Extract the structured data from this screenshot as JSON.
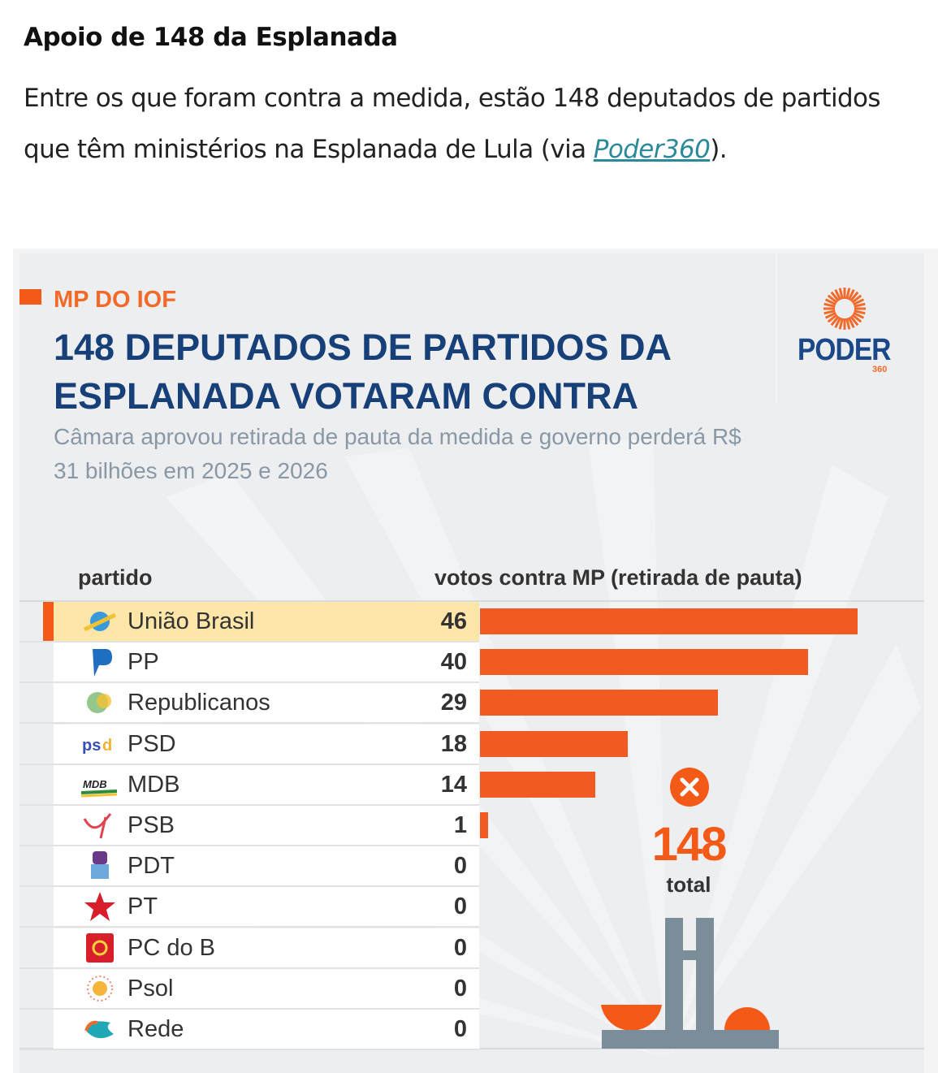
{
  "article": {
    "heading": "Apoio de 148 da Esplanada",
    "body_before_link": "Entre os que foram contra a medida, estão 148 deputados de partidos que têm ministérios na Esplanada de Lula (via ",
    "link_text": "Poder360",
    "body_after_link": ")."
  },
  "graphic": {
    "kicker": "MP DO IOF",
    "title": "148 DEPUTADOS DE PARTIDOS DA ESPLANADA VOTARAM CONTRA",
    "subtitle": "Câmara aprovou retirada de pauta da medida e governo perderá R$ 31 bilhões em 2025 e 2026",
    "logo": {
      "word": "PODER",
      "sub": "360",
      "icon": "sun-burst-icon"
    },
    "total": {
      "icon": "x-circle-icon",
      "value": "148",
      "label": "total"
    },
    "illustration": "congress-building-icon",
    "colors": {
      "accent": "#f15a22",
      "title": "#173f78",
      "highlight": "#fde6a8",
      "building": "#7a8d99"
    }
  },
  "chart_data": {
    "type": "bar",
    "orientation": "horizontal",
    "title": "148 DEPUTADOS DE PARTIDOS DA ESPLANADA VOTARAM CONTRA",
    "subtitle": "Câmara aprovou retirada de pauta da medida e governo perderá R$ 31 bilhões em 2025 e 2026",
    "xlabel": "votos contra MP (retirada de pauta)",
    "ylabel": "partido",
    "categories": [
      "União Brasil",
      "PP",
      "Republicanos",
      "PSD",
      "MDB",
      "PSB",
      "PDT",
      "PT",
      "PC do B",
      "Psol",
      "Rede"
    ],
    "values": [
      46,
      40,
      29,
      18,
      14,
      1,
      0,
      0,
      0,
      0,
      0
    ],
    "icons": [
      "uniao-brasil-logo-icon",
      "pp-logo-icon",
      "republicanos-logo-icon",
      "psd-logo-icon",
      "mdb-logo-icon",
      "psb-logo-icon",
      "pdt-logo-icon",
      "pt-star-icon",
      "pcdob-hammer-sickle-icon",
      "psol-sun-icon",
      "rede-logo-icon"
    ],
    "highlighted": "União Brasil",
    "total": 148,
    "xlim": [
      0,
      46
    ],
    "grid": false
  }
}
